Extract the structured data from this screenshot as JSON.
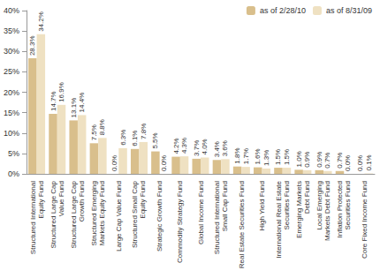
{
  "chart_data": {
    "type": "bar",
    "categories": [
      "Structured International\nEquity Fund",
      "Structured Large Cap\nValue Fund",
      "Structured Large Cap\nGrowth Fund",
      "Structured Emerging\nMarkets Equity Fund",
      "Large Cap Value Fund",
      "Structured Small Cap\nEquity Fund",
      "Strategic Growth Fund",
      "Commodity Strategy Fund",
      "Global Income Fund",
      "Structured International\nSmall Cap Fund",
      "Real Estate Securities Fund",
      "High Yield Fund",
      "International Real Estate\nSecurities Fund",
      "Emerging Markets\nDebt Fund",
      "Local Emerging\nMarkets Debt Fund",
      "Inflation Protected\nSecurities Fund",
      "Core Fixed Income Fund"
    ],
    "series": [
      {
        "name": "as of 2/28/10",
        "color": "#d9bf8c",
        "values": [
          28.3,
          14.7,
          13.1,
          7.5,
          0.0,
          6.1,
          5.5,
          4.2,
          3.7,
          3.4,
          1.8,
          1.6,
          1.5,
          1.0,
          0.9,
          0.7,
          0.0
        ],
        "value_labels": [
          "28.3%",
          "14.7%",
          "13.1%",
          "7.5%",
          "0.0%",
          "6.1%",
          "5.5%",
          "4.2%",
          "3.7%",
          "3.4%",
          "1.8%",
          "1.6%",
          "1.5%",
          "1.0%",
          "0.9%",
          "0.7%",
          "0.0%"
        ]
      },
      {
        "name": "as of 8/31/09",
        "color": "#efe1c2",
        "values": [
          34.2,
          16.9,
          14.4,
          8.8,
          6.3,
          7.8,
          0.0,
          4.3,
          4.0,
          3.6,
          1.7,
          1.3,
          1.5,
          0.9,
          0.7,
          0.0,
          0.1
        ],
        "value_labels": [
          "34.2%",
          "16.9%",
          "14.4%",
          "8.8%",
          "6.3%",
          "7.8%",
          "0.0%",
          "4.3%",
          "4.0%",
          "3.6%",
          "1.7%",
          "1.3%",
          "1.5%",
          "0.9%",
          "0.7%",
          "0.0%",
          "0.1%"
        ]
      }
    ],
    "ylim": [
      0,
      40
    ],
    "yticks": [
      {
        "value": 0,
        "label": "0%"
      },
      {
        "value": 5,
        "label": "5%"
      },
      {
        "value": 10,
        "label": "10%"
      },
      {
        "value": 15,
        "label": "15%"
      },
      {
        "value": 20,
        "label": "20%"
      },
      {
        "value": 25,
        "label": "25%"
      },
      {
        "value": 30,
        "label": "30%"
      },
      {
        "value": 35,
        "label": "35%"
      },
      {
        "value": 40,
        "label": "40%"
      }
    ],
    "grid": false,
    "legend": "top-right",
    "data_labels": true
  }
}
